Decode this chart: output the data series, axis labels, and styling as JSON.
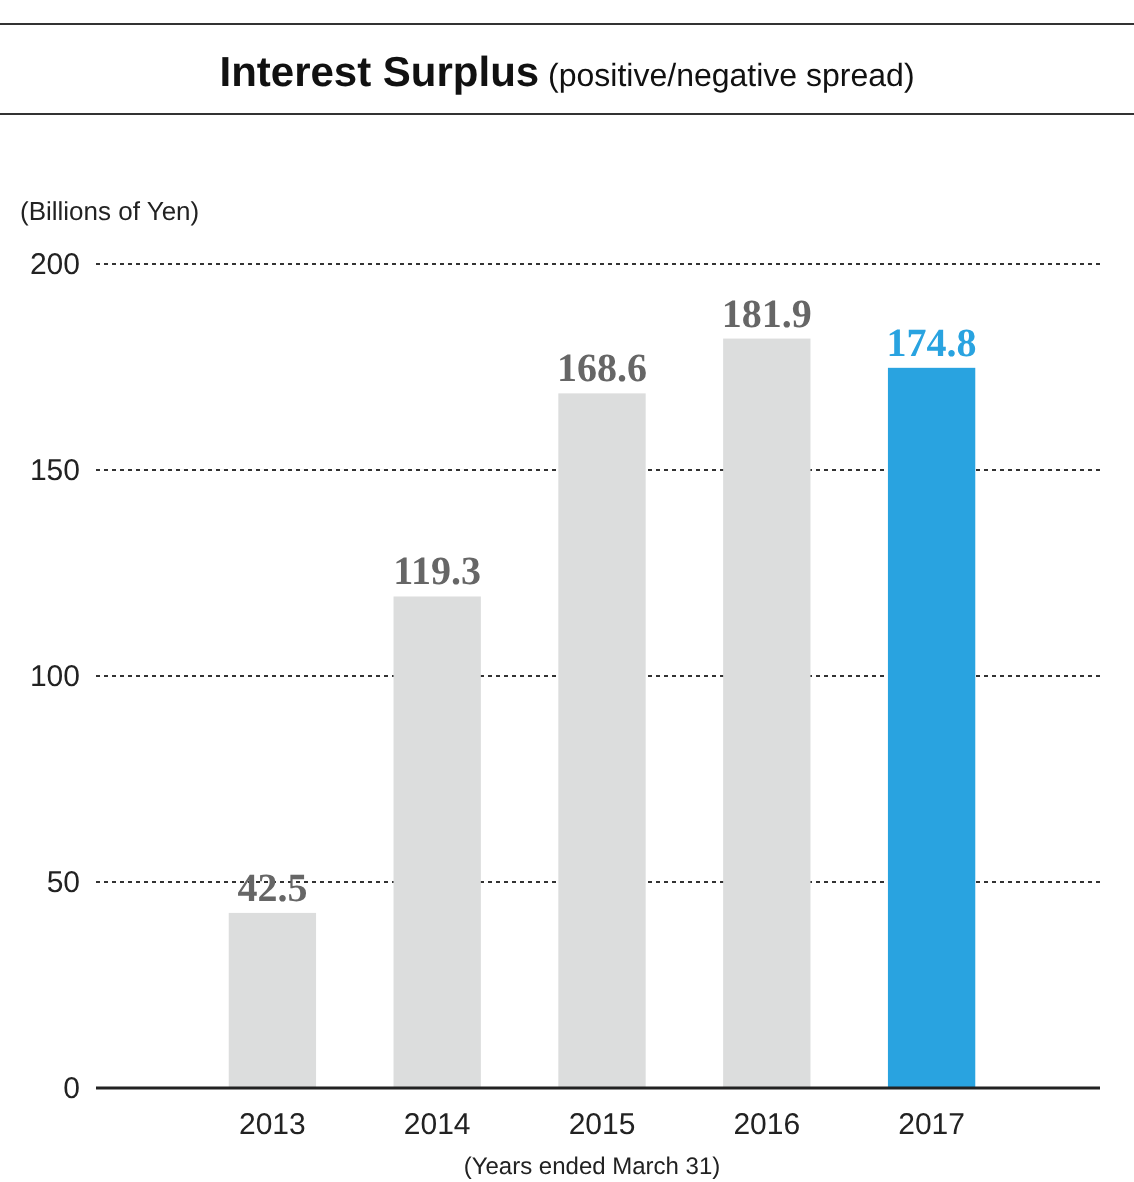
{
  "chart_data": {
    "type": "bar",
    "title": "Interest Surplus",
    "subtitle": "(positive/negative spread)",
    "ylabel": "(Billions of Yen)",
    "xlabel": "(Years ended March 31)",
    "categories": [
      "2013",
      "2014",
      "2015",
      "2016",
      "2017"
    ],
    "values": [
      42.5,
      119.3,
      168.6,
      181.9,
      174.8
    ],
    "colors": [
      "#dcdddd",
      "#dcdddd",
      "#dcdddd",
      "#dcdddd",
      "#29a3e0"
    ],
    "ylim": [
      0,
      200
    ],
    "yticks": [
      0,
      50,
      100,
      150,
      200
    ],
    "grid": "y",
    "data_labels": true
  }
}
